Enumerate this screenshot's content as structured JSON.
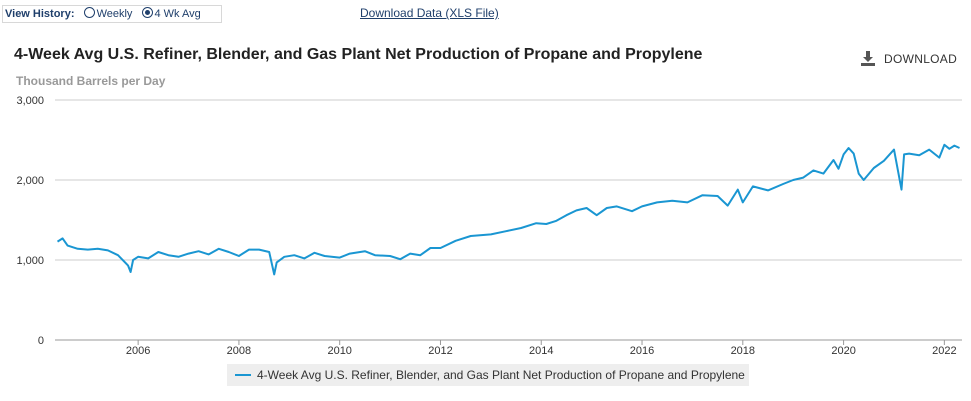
{
  "controls": {
    "view_history_label": "View History:",
    "options": [
      {
        "label": "Weekly",
        "selected": false
      },
      {
        "label": "4 Wk Avg",
        "selected": true
      }
    ],
    "download_link": "Download Data (XLS File)",
    "download_button": "DOWNLOAD",
    "download_icon": "download-icon"
  },
  "colors": {
    "series": "#1a96d2",
    "grid": "#cccccc",
    "text": "#333333"
  },
  "chart_data": {
    "type": "line",
    "title": "4-Week Avg U.S. Refiner, Blender, and Gas Plant Net Production of Propane and Propylene",
    "ylabel": "Thousand Barrels per Day",
    "ylim": [
      0,
      3000
    ],
    "xlim": [
      2004.35,
      2022.35
    ],
    "grid": true,
    "yticks": [
      {
        "value": 0,
        "label": "0"
      },
      {
        "value": 1000,
        "label": "1,000"
      },
      {
        "value": 2000,
        "label": "2,000"
      },
      {
        "value": 3000,
        "label": "3,000"
      }
    ],
    "xticks": [
      {
        "value": 2006,
        "label": "2006"
      },
      {
        "value": 2008,
        "label": "2008"
      },
      {
        "value": 2010,
        "label": "2010"
      },
      {
        "value": 2012,
        "label": "2012"
      },
      {
        "value": 2014,
        "label": "2014"
      },
      {
        "value": 2016,
        "label": "2016"
      },
      {
        "value": 2018,
        "label": "2018"
      },
      {
        "value": 2020,
        "label": "2020"
      },
      {
        "value": 2022,
        "label": "2022"
      }
    ],
    "legend_position": "bottom",
    "series": [
      {
        "name": "4-Week Avg U.S. Refiner, Blender, and Gas Plant Net Production of Propane and Propylene",
        "x": [
          2004.4,
          2004.5,
          2004.6,
          2004.8,
          2005.0,
          2005.2,
          2005.4,
          2005.6,
          2005.8,
          2005.85,
          2005.9,
          2006.0,
          2006.2,
          2006.4,
          2006.6,
          2006.8,
          2007.0,
          2007.2,
          2007.4,
          2007.6,
          2007.8,
          2008.0,
          2008.2,
          2008.4,
          2008.6,
          2008.7,
          2008.75,
          2008.9,
          2009.1,
          2009.3,
          2009.5,
          2009.7,
          2010.0,
          2010.2,
          2010.5,
          2010.7,
          2011.0,
          2011.2,
          2011.4,
          2011.6,
          2011.8,
          2012.0,
          2012.3,
          2012.6,
          2013.0,
          2013.3,
          2013.6,
          2013.9,
          2014.1,
          2014.3,
          2014.5,
          2014.7,
          2014.9,
          2015.1,
          2015.3,
          2015.5,
          2015.8,
          2016.0,
          2016.3,
          2016.6,
          2016.9,
          2017.2,
          2017.5,
          2017.7,
          2017.9,
          2018.0,
          2018.2,
          2018.5,
          2018.8,
          2019.0,
          2019.2,
          2019.4,
          2019.6,
          2019.8,
          2019.9,
          2020.0,
          2020.1,
          2020.2,
          2020.3,
          2020.4,
          2020.6,
          2020.8,
          2021.0,
          2021.15,
          2021.2,
          2021.3,
          2021.5,
          2021.7,
          2021.9,
          2022.0,
          2022.1,
          2022.2,
          2022.3
        ],
        "values": [
          1230,
          1270,
          1180,
          1140,
          1130,
          1140,
          1120,
          1060,
          930,
          850,
          1000,
          1040,
          1020,
          1100,
          1060,
          1040,
          1080,
          1110,
          1070,
          1140,
          1100,
          1050,
          1130,
          1130,
          1100,
          820,
          970,
          1040,
          1060,
          1020,
          1090,
          1050,
          1030,
          1080,
          1110,
          1060,
          1050,
          1010,
          1080,
          1060,
          1150,
          1150,
          1240,
          1300,
          1320,
          1360,
          1400,
          1460,
          1450,
          1490,
          1560,
          1620,
          1650,
          1560,
          1650,
          1670,
          1610,
          1670,
          1720,
          1740,
          1720,
          1810,
          1800,
          1680,
          1880,
          1720,
          1920,
          1870,
          1950,
          2000,
          2030,
          2120,
          2080,
          2250,
          2140,
          2320,
          2400,
          2330,
          2080,
          2000,
          2150,
          2240,
          2380,
          1880,
          2320,
          2330,
          2310,
          2380,
          2280,
          2440,
          2390,
          2430,
          2400
        ]
      }
    ]
  }
}
